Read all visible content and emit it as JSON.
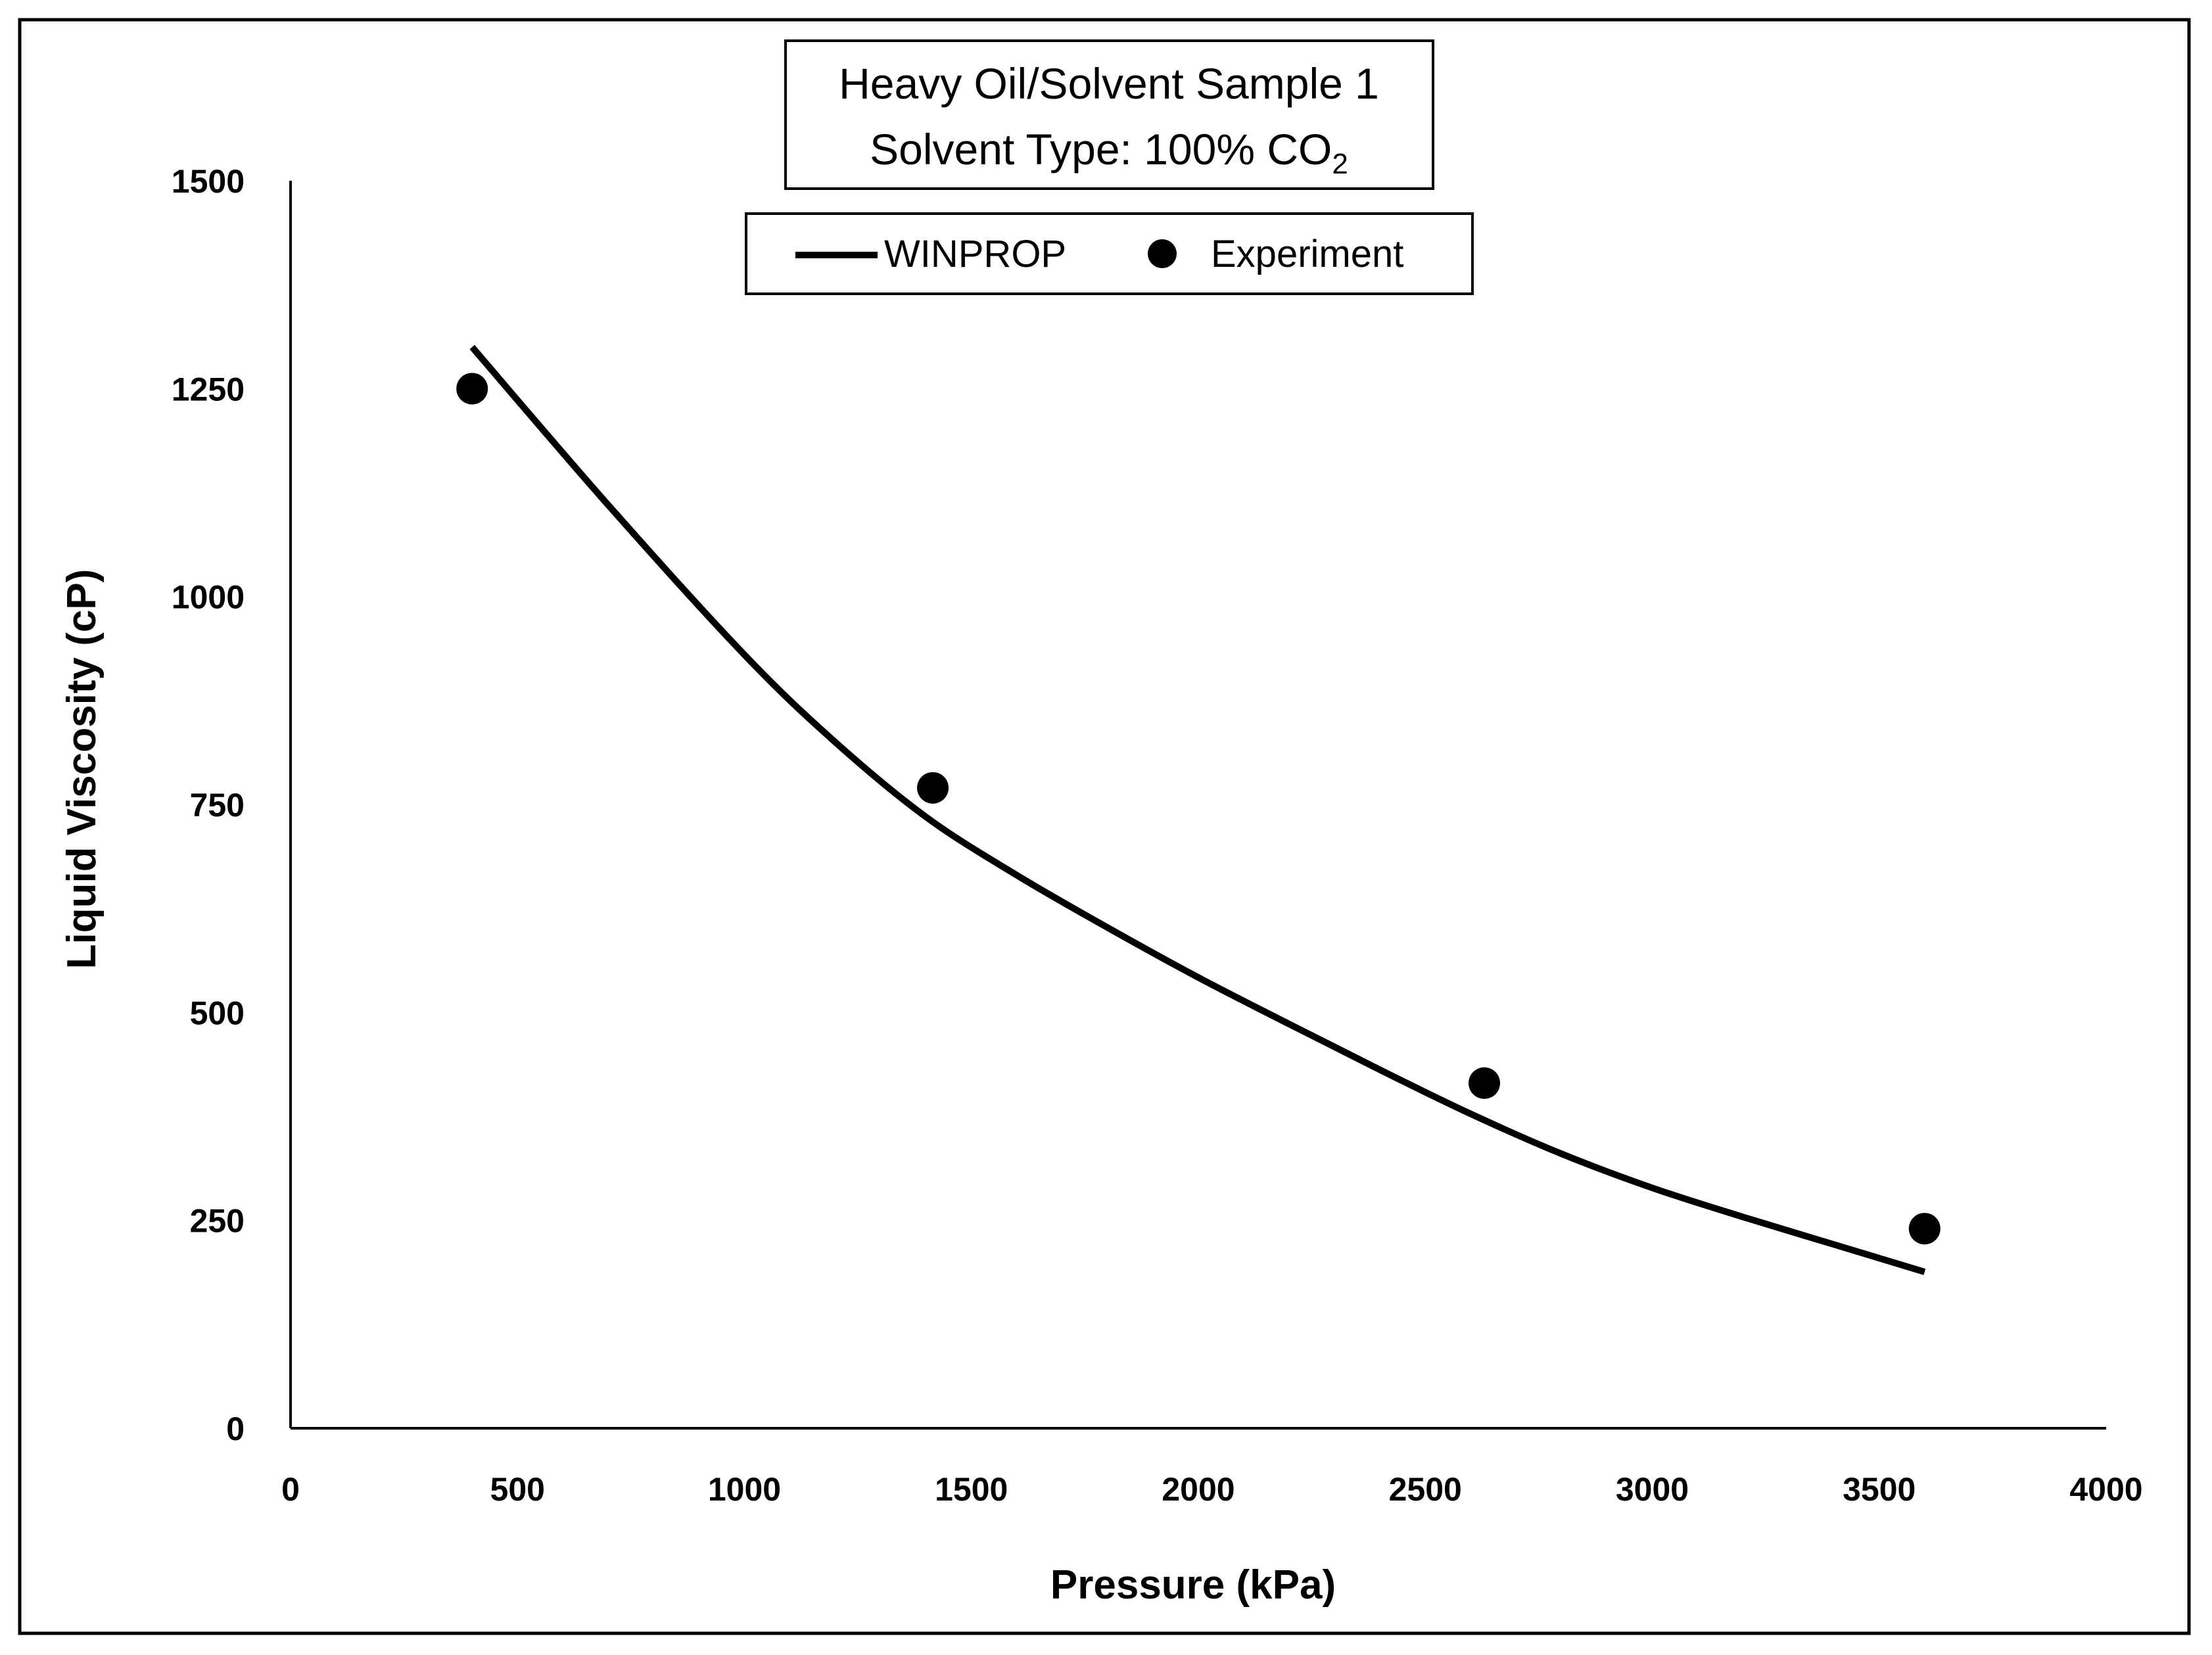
{
  "chart_data": {
    "type": "line",
    "title_line1": "Heavy Oil/Solvent Sample 1",
    "title_line2_prefix": "Solvent Type: 100% CO",
    "title_line2_subscript": "2",
    "xlabel": "Pressure (kPa)",
    "ylabel": "Liquid Viscosity (cP)",
    "xlim": [
      0,
      4000
    ],
    "ylim": [
      0,
      1500
    ],
    "xticks": [
      0,
      500,
      1000,
      1500,
      2000,
      2500,
      3000,
      3500,
      4000
    ],
    "yticks": [
      0,
      250,
      500,
      750,
      1000,
      1250,
      1500
    ],
    "legend_position": "top-center",
    "grid": false,
    "series": [
      {
        "name": "WINPROP",
        "kind": "line",
        "color": "#000000",
        "x": [
          400,
          700,
          1000,
          1200,
          1400,
          1600,
          1800,
          2000,
          2200,
          2400,
          2600,
          2800,
          3000,
          3200,
          3400,
          3600
        ],
        "y": [
          1300,
          1110,
          930,
          825,
          735,
          665,
          602,
          542,
          486,
          431,
          378,
          330,
          289,
          254,
          221,
          188
        ]
      },
      {
        "name": "Experiment",
        "kind": "scatter",
        "color": "#000000",
        "x": [
          400,
          1415,
          2630,
          3600
        ],
        "y": [
          1250,
          770,
          415,
          240
        ]
      }
    ]
  }
}
